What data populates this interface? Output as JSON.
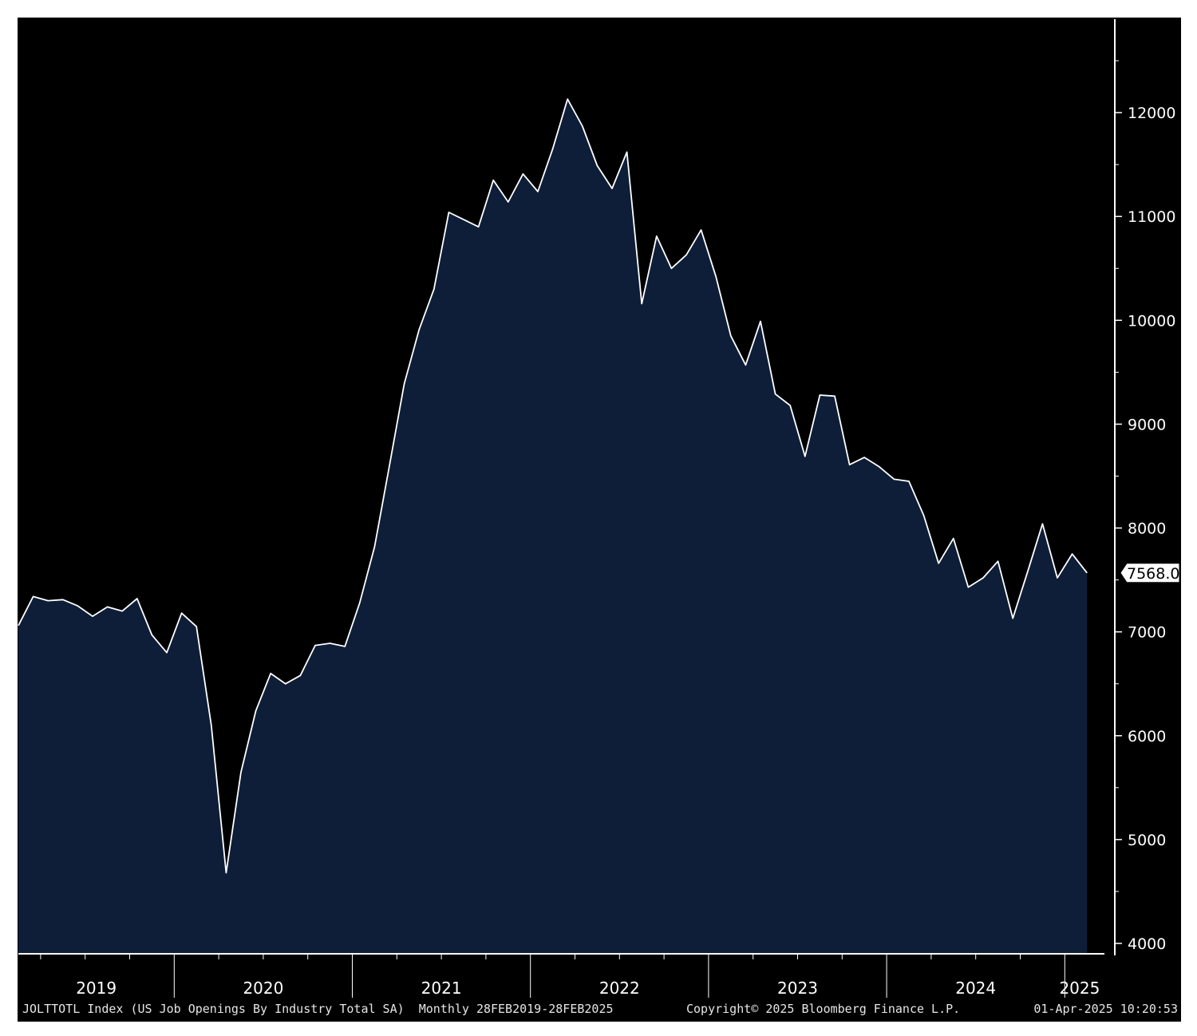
{
  "chart_data": {
    "type": "area",
    "start_label": "2019-02",
    "frequency": "monthly",
    "values": [
      7060,
      7340,
      7300,
      7310,
      7250,
      7150,
      7240,
      7200,
      7320,
      6970,
      6800,
      7180,
      7050,
      6100,
      4680,
      5650,
      6240,
      6600,
      6500,
      6580,
      6870,
      6890,
      6860,
      7280,
      7820,
      8600,
      9390,
      9910,
      10300,
      11040,
      10970,
      10900,
      11350,
      11140,
      11410,
      11240,
      11650,
      12130,
      11870,
      11490,
      11270,
      11620,
      10160,
      10810,
      10500,
      10630,
      10870,
      10420,
      9850,
      9570,
      9990,
      9290,
      9180,
      8690,
      9280,
      9270,
      8610,
      8680,
      8590,
      8470,
      8450,
      8120,
      7660,
      7900,
      7430,
      7520,
      7680,
      7130,
      7580,
      8040,
      7520,
      7750,
      7568
    ],
    "ylim": [
      3900,
      12900
    ],
    "yticks": [
      "4000",
      "5000",
      "6000",
      "7000",
      "8000",
      "9000",
      "10000",
      "11000",
      "12000"
    ],
    "x_tick_labels": [
      "2019",
      "2020",
      "2021",
      "2022",
      "2023",
      "2024",
      "2025"
    ],
    "last_value_label": "7568.0",
    "colors": {
      "background": "#000000",
      "fill": "#0e1e38",
      "line": "#ffffff"
    }
  },
  "footer": {
    "series_description": "JOLTTOTL Index (US Job Openings By Industry Total SA)  Monthly 28FEB2019-28FEB2025",
    "copyright": "Copyright© 2025 Bloomberg Finance L.P.",
    "timestamp": "01-Apr-2025 10:20:53"
  }
}
